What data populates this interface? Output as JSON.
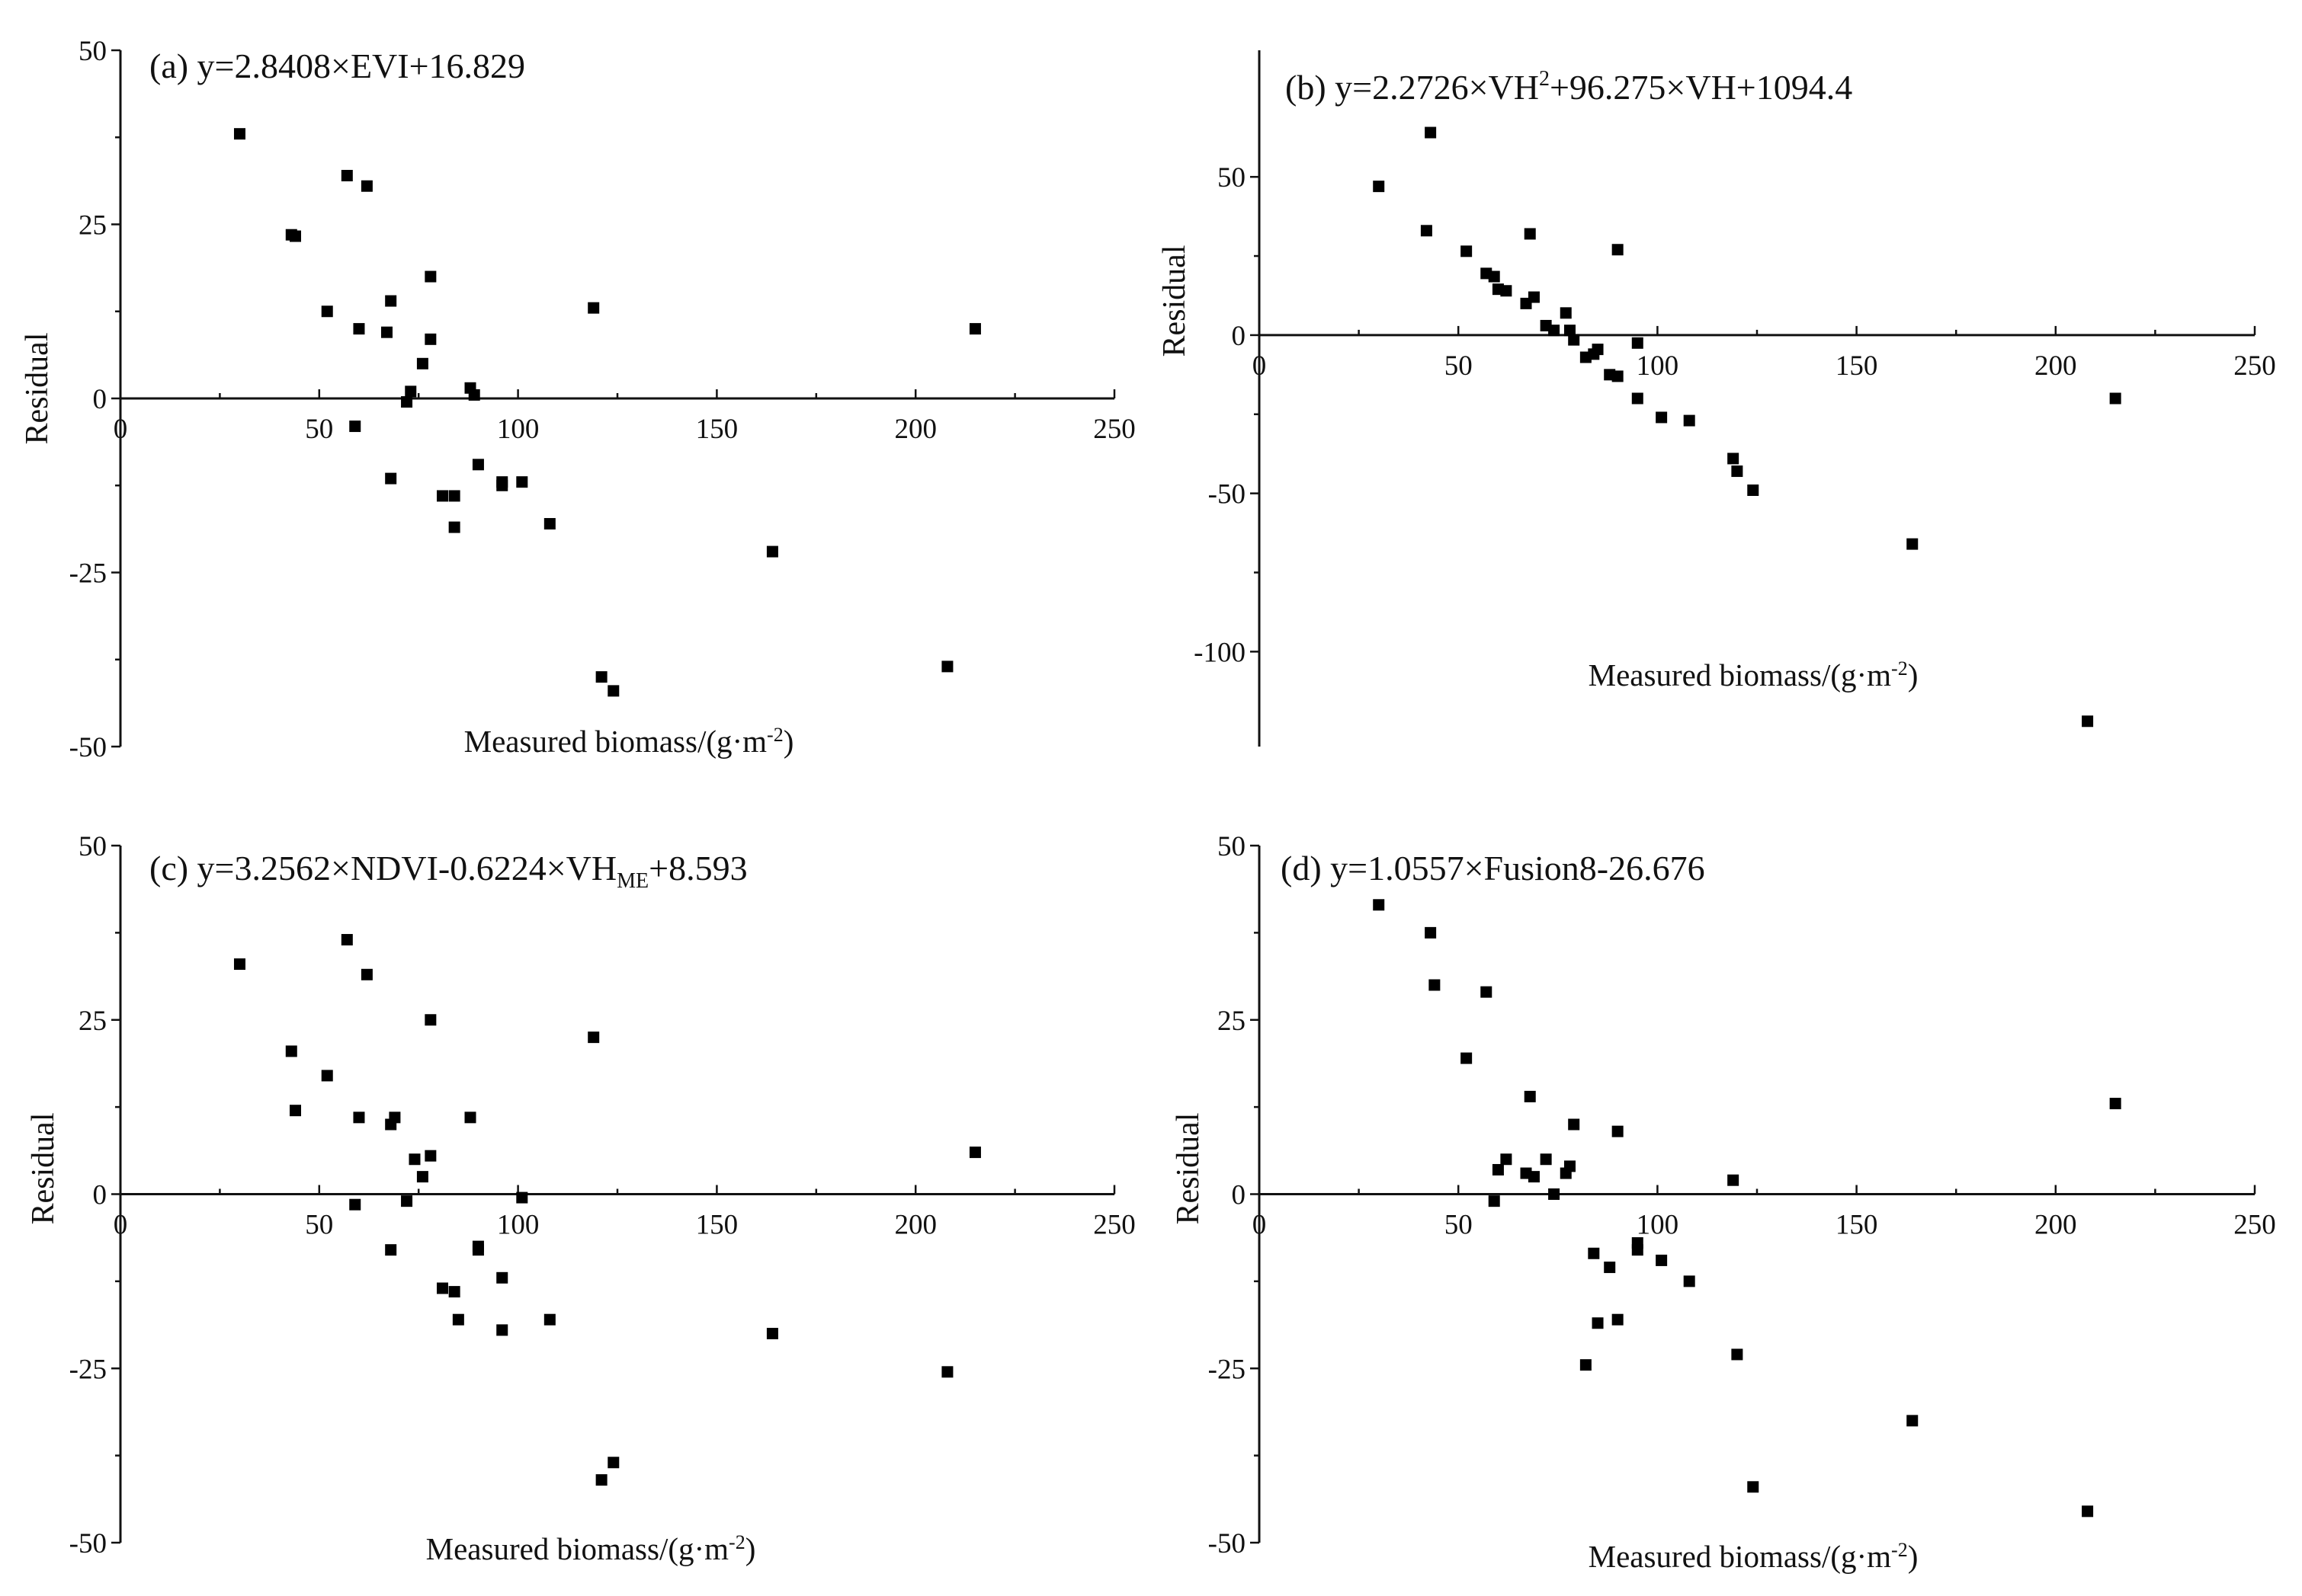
{
  "figure": {
    "background": "#ffffff",
    "marker_color": "#000000",
    "axis_color": "#111111"
  },
  "chart_data": [
    {
      "type": "scatter",
      "panel": "a",
      "title": {
        "lead": "(a) y=2.8408×EVI+16.829",
        "sup": "",
        "sub": "",
        "tail": ""
      },
      "xlabel": {
        "main": "Measured biomass/(g·m",
        "sup": "-2",
        "close": ")"
      },
      "ylabel": "Residual",
      "xlim": [
        0,
        250
      ],
      "ylim": [
        -50,
        50
      ],
      "xticks": [
        "0",
        "50",
        "100",
        "150",
        "200",
        "250"
      ],
      "yticks": [
        "50",
        "25",
        "0",
        "-25",
        "-50"
      ],
      "points": [
        [
          30,
          38
        ],
        [
          43,
          23.5
        ],
        [
          44,
          23.3
        ],
        [
          57,
          32
        ],
        [
          62,
          30.5
        ],
        [
          52,
          12.5
        ],
        [
          60,
          10
        ],
        [
          67,
          9.5
        ],
        [
          68,
          14
        ],
        [
          78,
          17.5
        ],
        [
          78,
          8.5
        ],
        [
          76,
          5
        ],
        [
          73,
          1
        ],
        [
          72,
          -0.5
        ],
        [
          88,
          1.5
        ],
        [
          89,
          0.5
        ],
        [
          59,
          -4
        ],
        [
          68,
          -11.5
        ],
        [
          81,
          -14
        ],
        [
          84,
          -14
        ],
        [
          84,
          -18.5
        ],
        [
          90,
          -9.5
        ],
        [
          96,
          -12.5
        ],
        [
          96,
          -12
        ],
        [
          101,
          -12
        ],
        [
          108,
          -18
        ],
        [
          119,
          13
        ],
        [
          121,
          -40
        ],
        [
          124,
          -42
        ],
        [
          164,
          -22
        ],
        [
          208,
          -38.5
        ],
        [
          215,
          10
        ]
      ]
    },
    {
      "type": "scatter",
      "panel": "b",
      "title": {
        "lead": "(b) y=2.2726×VH",
        "sup": "2",
        "sub": "",
        "tail": "+96.275×VH+1094.4"
      },
      "xlabel": {
        "main": "Measured biomass/(g·m",
        "sup": "-2",
        "close": ")"
      },
      "ylabel": "Residual",
      "xlim": [
        0,
        250
      ],
      "ylim": [
        -130,
        90
      ],
      "xticks": [
        "0",
        "50",
        "100",
        "150",
        "200",
        "250"
      ],
      "yticks": [
        "50",
        "0",
        "-50",
        "-100"
      ],
      "points": [
        [
          30,
          47
        ],
        [
          43,
          64
        ],
        [
          42,
          33
        ],
        [
          52,
          26.5
        ],
        [
          57,
          19.5
        ],
        [
          59,
          18.5
        ],
        [
          60,
          14.5
        ],
        [
          62,
          14
        ],
        [
          67,
          10
        ],
        [
          68,
          32
        ],
        [
          69,
          12
        ],
        [
          72,
          3
        ],
        [
          74,
          1.5
        ],
        [
          77,
          7
        ],
        [
          78,
          1.5
        ],
        [
          79,
          -1.5
        ],
        [
          82,
          -7
        ],
        [
          84,
          -6
        ],
        [
          85,
          -4.5
        ],
        [
          88,
          -12.5
        ],
        [
          90,
          -13
        ],
        [
          90,
          27
        ],
        [
          95,
          -2.5
        ],
        [
          95,
          -20
        ],
        [
          101,
          -26
        ],
        [
          108,
          -27
        ],
        [
          119,
          -39
        ],
        [
          120,
          -43
        ],
        [
          124,
          -49
        ],
        [
          164,
          -66
        ],
        [
          208,
          -122
        ],
        [
          215,
          -20
        ]
      ]
    },
    {
      "type": "scatter",
      "panel": "c",
      "title": {
        "lead": "(c) y=3.2562×NDVI-0.6224×VH",
        "sup": "",
        "sub": "ME",
        "tail": "+8.593"
      },
      "xlabel": {
        "main": "Measured biomass/(g·m",
        "sup": "-2",
        "close": ")"
      },
      "ylabel": "Residual",
      "xlim": [
        0,
        250
      ],
      "ylim": [
        -50,
        50
      ],
      "xticks": [
        "0",
        "50",
        "100",
        "150",
        "200",
        "250"
      ],
      "yticks": [
        "50",
        "25",
        "0",
        "-25",
        "-50"
      ],
      "points": [
        [
          30,
          33
        ],
        [
          43,
          20.5
        ],
        [
          44,
          12
        ],
        [
          52,
          17
        ],
        [
          57,
          36.5
        ],
        [
          62,
          31.5
        ],
        [
          60,
          11
        ],
        [
          68,
          10
        ],
        [
          69,
          11
        ],
        [
          59,
          -1.5
        ],
        [
          68,
          -8
        ],
        [
          72,
          -1
        ],
        [
          74,
          5
        ],
        [
          78,
          25
        ],
        [
          78,
          5.5
        ],
        [
          76,
          2.5
        ],
        [
          81,
          -13.5
        ],
        [
          84,
          -14
        ],
        [
          85,
          -18
        ],
        [
          88,
          11
        ],
        [
          90,
          -8
        ],
        [
          90,
          -7.5
        ],
        [
          96,
          -12
        ],
        [
          96,
          -19.5
        ],
        [
          101,
          -0.5
        ],
        [
          108,
          -18
        ],
        [
          119,
          22.5
        ],
        [
          121,
          -41
        ],
        [
          124,
          -38.5
        ],
        [
          164,
          -20
        ],
        [
          208,
          -25.5
        ],
        [
          215,
          6
        ]
      ]
    },
    {
      "type": "scatter",
      "panel": "d",
      "title": {
        "lead": "(d) y=1.0557×Fusion8-26.676",
        "sup": "",
        "sub": "",
        "tail": ""
      },
      "xlabel": {
        "main": "Measured biomass/(g·m",
        "sup": "-2",
        "close": ")"
      },
      "ylabel": "Residual",
      "xlim": [
        0,
        250
      ],
      "ylim": [
        -50,
        50
      ],
      "xticks": [
        "0",
        "50",
        "100",
        "150",
        "200",
        "250"
      ],
      "yticks": [
        "50",
        "25",
        "0",
        "-25",
        "-50"
      ],
      "points": [
        [
          30,
          41.5
        ],
        [
          43,
          37.5
        ],
        [
          44,
          30
        ],
        [
          52,
          19.5
        ],
        [
          57,
          29
        ],
        [
          59,
          -1
        ],
        [
          60,
          3.5
        ],
        [
          62,
          5
        ],
        [
          67,
          3
        ],
        [
          69,
          2.5
        ],
        [
          68,
          14
        ],
        [
          72,
          5
        ],
        [
          74,
          0
        ],
        [
          77,
          3
        ],
        [
          78,
          4
        ],
        [
          79,
          10
        ],
        [
          82,
          -24.5
        ],
        [
          84,
          -8.5
        ],
        [
          85,
          -18.5
        ],
        [
          88,
          -10.5
        ],
        [
          90,
          -18
        ],
        [
          90,
          9
        ],
        [
          95,
          -7
        ],
        [
          95,
          -8
        ],
        [
          101,
          -9.5
        ],
        [
          108,
          -12.5
        ],
        [
          119,
          2
        ],
        [
          120,
          -23
        ],
        [
          124,
          -42
        ],
        [
          164,
          -32.5
        ],
        [
          208,
          -45.5
        ],
        [
          215,
          13
        ]
      ]
    }
  ]
}
